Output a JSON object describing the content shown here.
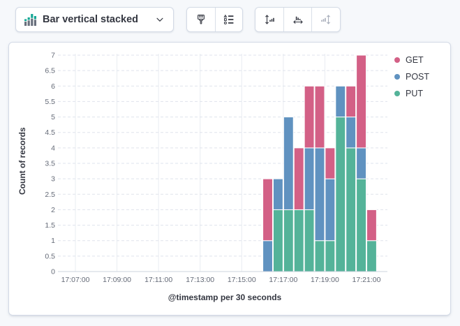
{
  "toolbar": {
    "chart_type": {
      "label": "Bar vertical stacked",
      "icon": "bar-vertical-stacked-icon",
      "chevron": "chevron-down-icon"
    },
    "style_buttons": [
      "paintbrush-icon",
      "legend-values-icon"
    ],
    "axis_buttons": [
      "left-axis-icon",
      "bottom-axis-icon",
      "right-axis-icon"
    ],
    "right_axis_button_disabled": true
  },
  "chart_data": {
    "type": "bar",
    "stacked": true,
    "ylabel": "Count of records",
    "xlabel": "@timestamp per 30 seconds",
    "ylim": [
      0,
      7
    ],
    "y_ticks": [
      "0",
      "0.5",
      "1",
      "1.5",
      "2",
      "2.5",
      "3",
      "3.5",
      "4",
      "4.5",
      "5",
      "5.5",
      "6",
      "6.5",
      "7"
    ],
    "x_ticks": [
      "17:07:00",
      "17:09:00",
      "17:11:00",
      "17:13:00",
      "17:15:00",
      "17:17:00",
      "17:19:00",
      "17:21:00"
    ],
    "x_tick_interval_seconds": 120,
    "bucket_seconds": 30,
    "buckets": [
      "17:16:00",
      "17:16:30",
      "17:17:00",
      "17:17:30",
      "17:18:00",
      "17:18:30",
      "17:19:00",
      "17:19:30",
      "17:20:00",
      "17:20:30",
      "17:21:00"
    ],
    "series": [
      {
        "name": "GET",
        "color": "#D36086",
        "values": [
          2,
          0,
          0,
          2,
          2,
          2,
          1,
          0,
          1,
          3,
          1
        ]
      },
      {
        "name": "POST",
        "color": "#6092C0",
        "values": [
          1,
          1,
          3,
          0,
          2,
          3,
          2,
          1,
          1,
          1,
          0
        ]
      },
      {
        "name": "PUT",
        "color": "#54B399",
        "values": [
          0,
          2,
          2,
          2,
          2,
          1,
          1,
          5,
          4,
          3,
          1
        ]
      }
    ],
    "stack_bottom_to_top": [
      "PUT",
      "POST",
      "GET"
    ],
    "legend": {
      "position": "top-right",
      "items": [
        "GET",
        "POST",
        "PUT"
      ]
    },
    "grid": {
      "horizontal": "dashed",
      "vertical": "solid"
    }
  }
}
